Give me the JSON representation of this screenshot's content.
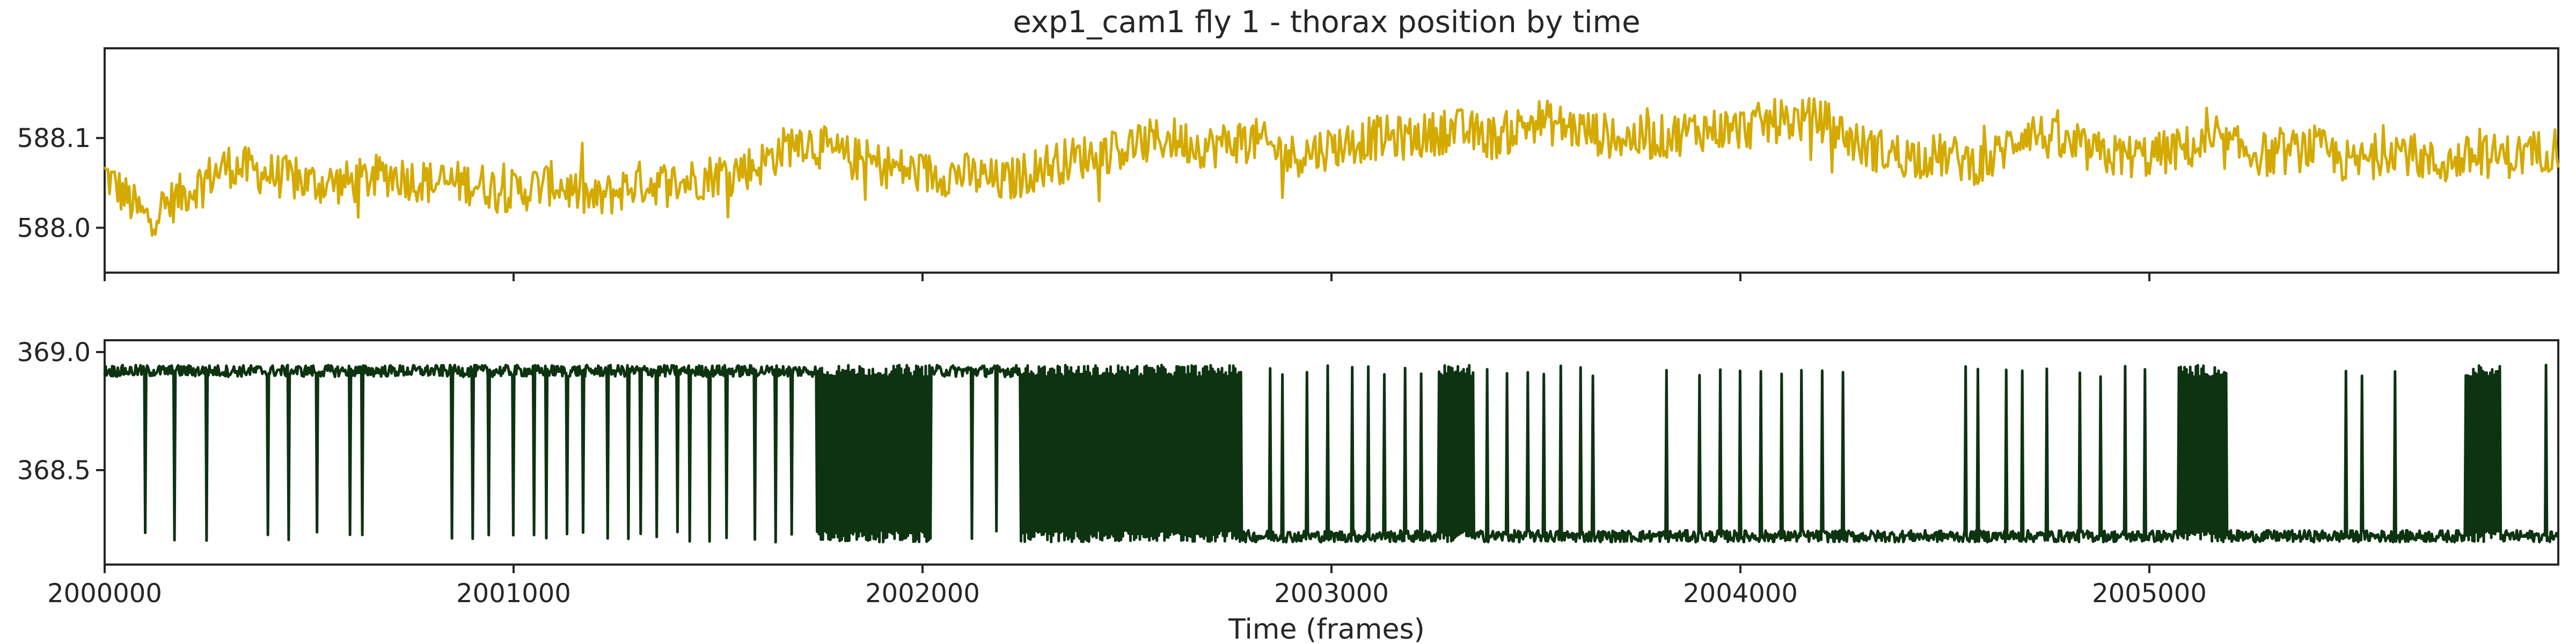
{
  "chart_data": {
    "type": "line",
    "title": "exp1_cam1 fly 1 - thorax position by time",
    "xlabel": "Time (frames)",
    "xlim": [
      2000000,
      2006000
    ],
    "x_ticks": [
      "2000000",
      "2001000",
      "2002000",
      "2003000",
      "2004000",
      "2005000"
    ],
    "x_tick_values": [
      2000000,
      2001000,
      2002000,
      2003000,
      2004000,
      2005000
    ],
    "panels": [
      {
        "name": "x",
        "color": "#d4aa00",
        "ylim": [
          587.95,
          588.2
        ],
        "y_ticks": [
          "588.0",
          "588.1"
        ],
        "y_tick_values": [
          588.0,
          588.1
        ],
        "x": [
          2000000,
          2000100,
          2000200,
          2000300,
          2000400,
          2000500,
          2000600,
          2000700,
          2000800,
          2000900,
          2001000,
          2001100,
          2001200,
          2001300,
          2001400,
          2001500,
          2001600,
          2001700,
          2001800,
          2001900,
          2002000,
          2002100,
          2002200,
          2002300,
          2002400,
          2002500,
          2002600,
          2002700,
          2002800,
          2002900,
          2003000,
          2003100,
          2003200,
          2003300,
          2003400,
          2003500,
          2003600,
          2003700,
          2003800,
          2003900,
          2004000,
          2004100,
          2004200,
          2004300,
          2004400,
          2004500,
          2004600,
          2004700,
          2004800,
          2004900,
          2005000,
          2005100,
          2005200,
          2005300,
          2005400,
          2005500,
          2005600,
          2005700,
          2005800,
          2005900,
          2006000
        ],
        "values": [
          588.06,
          588.01,
          588.04,
          588.07,
          588.06,
          588.05,
          588.05,
          588.06,
          588.05,
          588.05,
          588.04,
          588.05,
          588.03,
          588.05,
          588.05,
          588.06,
          588.07,
          588.1,
          588.08,
          588.07,
          588.06,
          588.06,
          588.05,
          588.07,
          588.08,
          588.09,
          588.1,
          588.09,
          588.1,
          588.08,
          588.09,
          588.1,
          588.1,
          588.11,
          588.1,
          588.12,
          588.11,
          588.1,
          588.1,
          588.11,
          588.11,
          588.12,
          588.12,
          588.09,
          588.08,
          588.08,
          588.07,
          588.11,
          588.09,
          588.08,
          588.08,
          588.09,
          588.09,
          588.08,
          588.09,
          588.07,
          588.09,
          588.07,
          588.08,
          588.08,
          588.09
        ]
      },
      {
        "name": "y",
        "color": "#0d3311",
        "ylim": [
          368.1,
          369.05
        ],
        "y_ticks": [
          "368.5",
          "369.0"
        ],
        "y_tick_values": [
          368.5,
          369.0
        ],
        "low_level": 368.22,
        "high_level": 368.92,
        "high_spans": [
          [
            2000000,
            2002260
          ]
        ],
        "dense_spans": [
          [
            2001740,
            2002020
          ],
          [
            2002240,
            2002780
          ],
          [
            2003260,
            2003350
          ],
          [
            2005070,
            2005190
          ],
          [
            2005770,
            2005860
          ]
        ],
        "spike_x": [
          2000100,
          2000170,
          2000250,
          2000400,
          2000450,
          2000520,
          2000600,
          2000630,
          2000850,
          2000900,
          2000940,
          2001000,
          2001050,
          2001080,
          2001130,
          2001170,
          2001230,
          2001280,
          2001310,
          2001350,
          2001400,
          2001430,
          2001480,
          2001520,
          2001590,
          2001640,
          2001680,
          2002120,
          2002180,
          2002850,
          2002880,
          2002940,
          2002990,
          2003050,
          2003090,
          2003130,
          2003180,
          2003220,
          2003380,
          2003430,
          2003480,
          2003520,
          2003560,
          2003610,
          2003640,
          2003820,
          2003900,
          2003950,
          2004000,
          2004050,
          2004100,
          2004150,
          2004200,
          2004250,
          2004550,
          2004580,
          2004650,
          2004690,
          2004750,
          2004830,
          2004880,
          2004940,
          2004990,
          2005480,
          2005520,
          2005600,
          2005970
        ]
      }
    ]
  }
}
